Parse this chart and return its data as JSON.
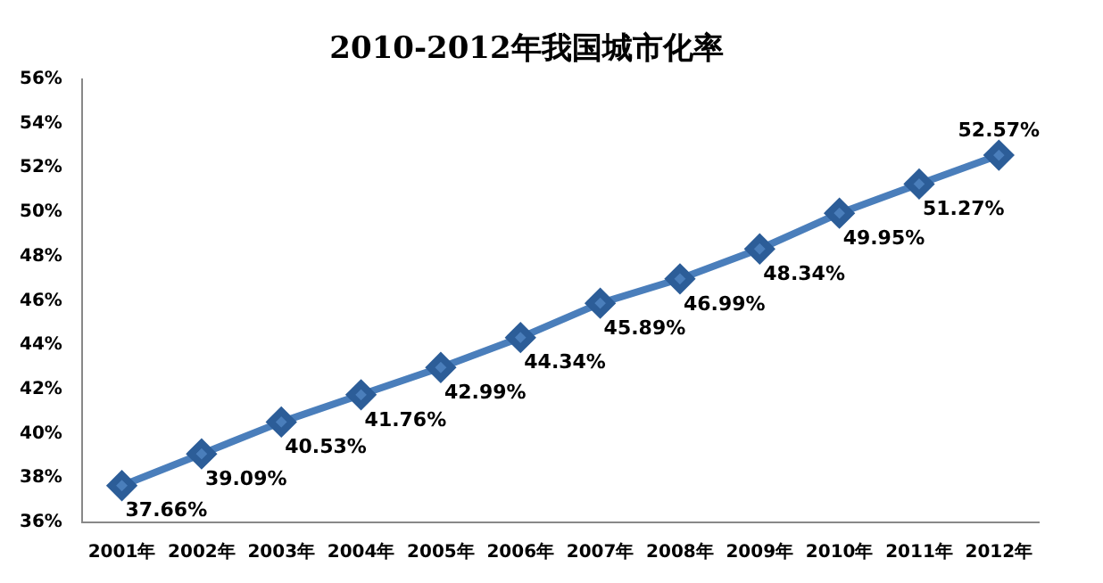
{
  "chart_data": {
    "type": "line",
    "title": "2010-2012年我国城市化率",
    "categories": [
      "2001年",
      "2002年",
      "2003年",
      "2004年",
      "2005年",
      "2006年",
      "2007年",
      "2008年",
      "2009年",
      "2010年",
      "2011年",
      "2012年"
    ],
    "series": [
      {
        "color": "#4a7ebb",
        "values": [
          37.66,
          39.09,
          40.53,
          41.76,
          42.99,
          44.34,
          45.89,
          46.99,
          48.34,
          49.95,
          51.27,
          52.57
        ],
        "value_labels": [
          "37.66%",
          "39.09%",
          "40.53%",
          "41.76%",
          "42.99%",
          "44.34%",
          "45.89%",
          "46.99%",
          "48.34%",
          "49.95%",
          "51.27%",
          "52.57%"
        ]
      }
    ],
    "ylim": [
      36,
      56
    ],
    "yticks": [
      {
        "value": 36,
        "label": "36%"
      },
      {
        "value": 38,
        "label": "38%"
      },
      {
        "value": 40,
        "label": "40%"
      },
      {
        "value": 42,
        "label": "42%"
      },
      {
        "value": 44,
        "label": "44%"
      },
      {
        "value": 46,
        "label": "46%"
      },
      {
        "value": 48,
        "label": "48%"
      },
      {
        "value": 50,
        "label": "50%"
      },
      {
        "value": 52,
        "label": "52%"
      },
      {
        "value": 54,
        "label": "54%"
      },
      {
        "value": 56,
        "label": "56%"
      }
    ],
    "marker": "diamond",
    "line_style": "solid",
    "grid": false,
    "legend": false
  }
}
